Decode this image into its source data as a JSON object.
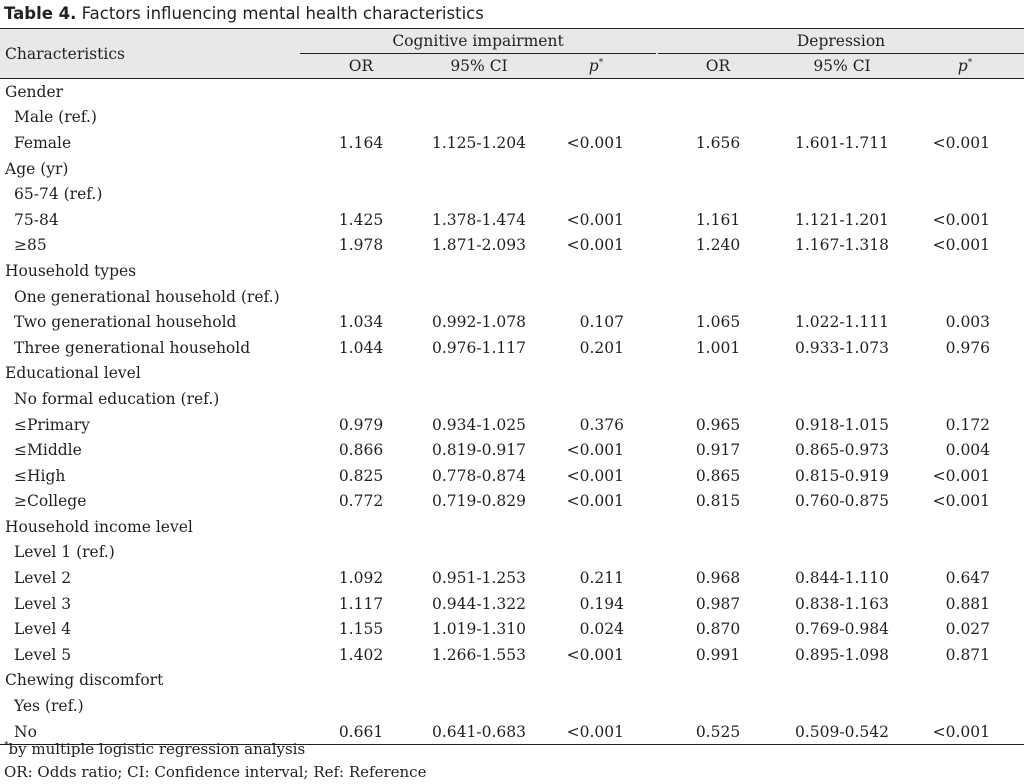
{
  "title": {
    "label": "Table 4.",
    "text": " Factors influencing mental health characteristics"
  },
  "header": {
    "characteristics": "Characteristics",
    "groups": [
      "Cognitive impairment",
      "Depression"
    ],
    "subcols": [
      "OR",
      "95% CI",
      "p",
      "*"
    ]
  },
  "rows": [
    {
      "kind": "cat",
      "label": "Gender"
    },
    {
      "kind": "sub",
      "label": "Male (ref.)",
      "vals": [
        "",
        "",
        "",
        "",
        "",
        ""
      ]
    },
    {
      "kind": "sub",
      "label": "Female",
      "vals": [
        "1.164",
        "1.125-1.204",
        "<0.001",
        "1.656",
        "1.601-1.711",
        "<0.001"
      ]
    },
    {
      "kind": "cat",
      "label": "Age (yr)"
    },
    {
      "kind": "sub",
      "label": "65-74 (ref.)",
      "vals": [
        "",
        "",
        "",
        "",
        "",
        ""
      ]
    },
    {
      "kind": "sub",
      "label": "75-84",
      "vals": [
        "1.425",
        "1.378-1.474",
        "<0.001",
        "1.161",
        "1.121-1.201",
        "<0.001"
      ]
    },
    {
      "kind": "sub",
      "label": "≥85",
      "vals": [
        "1.978",
        "1.871-2.093",
        "<0.001",
        "1.240",
        "1.167-1.318",
        "<0.001"
      ]
    },
    {
      "kind": "cat",
      "label": "Household types"
    },
    {
      "kind": "sub",
      "label": "One generational household (ref.)",
      "vals": [
        "",
        "",
        "",
        "",
        "",
        ""
      ]
    },
    {
      "kind": "sub",
      "label": "Two generational household",
      "vals": [
        "1.034",
        "0.992-1.078",
        "0.107",
        "1.065",
        "1.022-1.111",
        "0.003"
      ]
    },
    {
      "kind": "sub",
      "label": "Three generational household",
      "vals": [
        "1.044",
        "0.976-1.117",
        "0.201",
        "1.001",
        "0.933-1.073",
        "0.976"
      ]
    },
    {
      "kind": "cat",
      "label": "Educational level"
    },
    {
      "kind": "sub",
      "label": "No formal education (ref.)",
      "vals": [
        "",
        "",
        "",
        "",
        "",
        ""
      ]
    },
    {
      "kind": "sub",
      "label": "≤Primary",
      "vals": [
        "0.979",
        "0.934-1.025",
        "0.376",
        "0.965",
        "0.918-1.015",
        "0.172"
      ]
    },
    {
      "kind": "sub",
      "label": "≤Middle",
      "vals": [
        "0.866",
        "0.819-0.917",
        "<0.001",
        "0.917",
        "0.865-0.973",
        "0.004"
      ]
    },
    {
      "kind": "sub",
      "label": "≤High",
      "vals": [
        "0.825",
        "0.778-0.874",
        "<0.001",
        "0.865",
        "0.815-0.919",
        "<0.001"
      ]
    },
    {
      "kind": "sub",
      "label": "≥College",
      "vals": [
        "0.772",
        "0.719-0.829",
        "<0.001",
        "0.815",
        "0.760-0.875",
        "<0.001"
      ]
    },
    {
      "kind": "cat",
      "label": "Household income level"
    },
    {
      "kind": "sub",
      "label": "Level 1 (ref.)",
      "vals": [
        "",
        "",
        "",
        "",
        "",
        ""
      ]
    },
    {
      "kind": "sub",
      "label": "Level 2",
      "vals": [
        "1.092",
        "0.951-1.253",
        "0.211",
        "0.968",
        "0.844-1.110",
        "0.647"
      ]
    },
    {
      "kind": "sub",
      "label": "Level 3",
      "vals": [
        "1.117",
        "0.944-1.322",
        "0.194",
        "0.987",
        "0.838-1.163",
        "0.881"
      ]
    },
    {
      "kind": "sub",
      "label": "Level 4",
      "vals": [
        "1.155",
        "1.019-1.310",
        "0.024",
        "0.870",
        "0.769-0.984",
        "0.027"
      ]
    },
    {
      "kind": "sub",
      "label": "Level 5",
      "vals": [
        "1.402",
        "1.266-1.553",
        "<0.001",
        "0.991",
        "0.895-1.098",
        "0.871"
      ]
    },
    {
      "kind": "cat",
      "label": "Chewing discomfort"
    },
    {
      "kind": "sub",
      "label": "Yes (ref.)",
      "vals": [
        "",
        "",
        "",
        "",
        "",
        ""
      ]
    },
    {
      "kind": "sub",
      "label": "No",
      "vals": [
        "0.661",
        "0.641-0.683",
        "<0.001",
        "0.525",
        "0.509-0.542",
        "<0.001"
      ]
    }
  ],
  "footnotes": {
    "star": "*",
    "note1": "by multiple logistic regression analysis",
    "note2": "OR: Odds ratio; CI: Confidence interval; Ref: Reference"
  }
}
